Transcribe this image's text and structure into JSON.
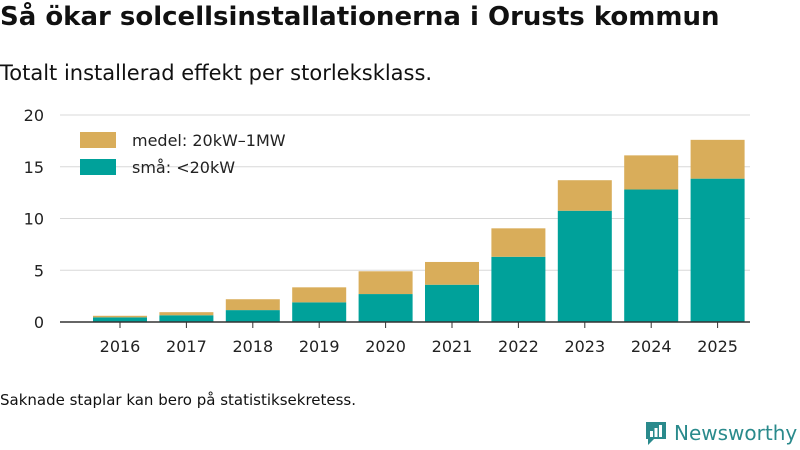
{
  "header": {
    "title": "Så ökar solcellsinstallationerna i Orusts kommun",
    "subtitle": "Totalt installerad effekt per storleksklass."
  },
  "footer": {
    "note": "Saknade staplar kan bero på statistiksekretess.",
    "brand": "Newsworthy"
  },
  "colors": {
    "small": "#00a19a",
    "medium": "#d9ad5a",
    "grid": "#d8d8d8",
    "axis": "#333333"
  },
  "chart_data": {
    "type": "bar",
    "stacked": true,
    "title": "Så ökar solcellsinstallationerna i Orusts kommun",
    "subtitle": "Totalt installerad effekt per storleksklass.",
    "xlabel": "",
    "ylabel": "",
    "ylim": [
      0,
      20
    ],
    "yticks": [
      0,
      5,
      10,
      15,
      20
    ],
    "categories": [
      "2016",
      "2017",
      "2018",
      "2019",
      "2020",
      "2021",
      "2022",
      "2023",
      "2024",
      "2025"
    ],
    "series": [
      {
        "name": "små: <20kW",
        "values": [
          0.45,
          0.65,
          1.15,
          1.9,
          2.7,
          3.6,
          6.3,
          10.75,
          12.8,
          13.85
        ]
      },
      {
        "name": "medel: 20kW–1MW",
        "values": [
          0.15,
          0.3,
          1.05,
          1.45,
          2.2,
          2.2,
          2.75,
          2.95,
          3.3,
          3.75
        ]
      }
    ],
    "legend": [
      {
        "label": "medel: 20kW–1MW",
        "series": 1
      },
      {
        "label": "små: <20kW",
        "series": 0
      }
    ],
    "legend_position": "top-left"
  }
}
